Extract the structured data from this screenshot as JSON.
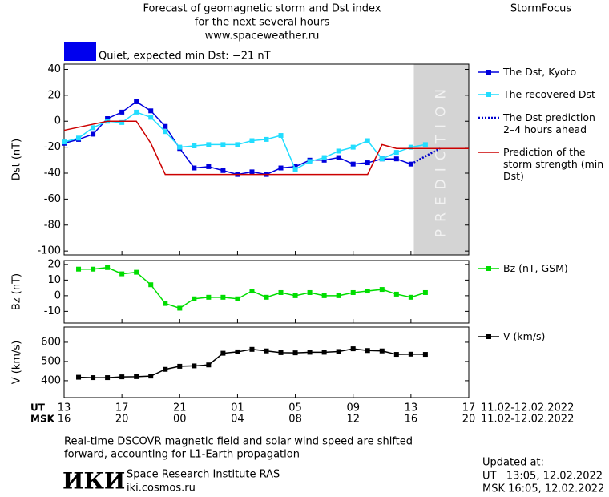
{
  "header": {
    "title_lines": [
      "Forecast of geomagnetic storm and Dst index",
      "for the next several hours",
      "www.spaceweather.ru"
    ],
    "brand": "StormFocus"
  },
  "chart_data": [
    {
      "type": "line",
      "y_label": "Dst (nT)",
      "xlim": [
        0,
        28
      ],
      "ylim": [
        -103,
        44
      ],
      "yticks": [
        40,
        20,
        0,
        -20,
        -40,
        -60,
        -80,
        -100
      ],
      "status": "Quiet, expected min Dst: −21 nT",
      "status_color": "#0000ee",
      "prediction_region": {
        "x": [
          24.2,
          28
        ],
        "label": "PREDICTION",
        "color": "#d4d4d4"
      },
      "series": [
        {
          "name": "The Dst, Kyoto",
          "color": "#0000dd",
          "style": "line-markers",
          "x": [
            0,
            1,
            2,
            3,
            4,
            5,
            6,
            7,
            8,
            9,
            10,
            11,
            12,
            13,
            14,
            15,
            16,
            17,
            18,
            19,
            20,
            21,
            22,
            23,
            24
          ],
          "values": [
            -17,
            -14,
            -10,
            2,
            7,
            15,
            8,
            -4,
            -21,
            -36,
            -35,
            -38,
            -41,
            -39,
            -41,
            -36,
            -35,
            -30,
            -30,
            -28,
            -33,
            -32,
            -29,
            -29,
            -33
          ]
        },
        {
          "name": "The recovered Dst",
          "color": "#22ddff",
          "style": "line-markers",
          "x": [
            0,
            1,
            2,
            3,
            4,
            5,
            6,
            7,
            8,
            9,
            10,
            11,
            12,
            13,
            14,
            15,
            16,
            17,
            18,
            19,
            20,
            21,
            22,
            23,
            24,
            25
          ],
          "values": [
            -16,
            -13,
            -5,
            0,
            -1,
            7,
            3,
            -8,
            -20,
            -19,
            -18,
            -18,
            -18,
            -15,
            -14,
            -11,
            -37,
            -31,
            -28,
            -23,
            -20,
            -15,
            -29,
            -24,
            -20,
            -18
          ]
        },
        {
          "name": "The Dst prediction 2–4 hours ahead",
          "color": "#0000cc",
          "style": "dotted",
          "x": [
            24,
            26
          ],
          "values": [
            -33,
            -21
          ]
        },
        {
          "name": "Prediction of the storm strength (min Dst)",
          "color": "#cc0000",
          "style": "line",
          "x": [
            0,
            3,
            5,
            6,
            7,
            21,
            22,
            23,
            28
          ],
          "values": [
            -7,
            0,
            0,
            -17,
            -41,
            -41,
            -18,
            -21,
            -21
          ]
        }
      ]
    },
    {
      "type": "line",
      "y_label": "Bz (nT)",
      "xlim": [
        0,
        28
      ],
      "ylim": [
        -17.5,
        22.5
      ],
      "yticks": [
        20,
        10,
        0,
        -10
      ],
      "series": [
        {
          "name": "Bz (nT, GSM)",
          "color": "#00dd00",
          "style": "line-markers",
          "x": [
            1,
            2,
            3,
            4,
            5,
            6,
            7,
            8,
            9,
            10,
            11,
            12,
            13,
            14,
            15,
            16,
            17,
            18,
            19,
            20,
            21,
            22,
            23,
            24,
            25
          ],
          "values": [
            17,
            17,
            18,
            14,
            15,
            7,
            -5,
            -8,
            -2,
            -1,
            -1,
            -2,
            3,
            -1,
            2,
            0,
            2,
            0,
            0,
            2,
            3,
            4,
            1,
            -1,
            2
          ]
        }
      ]
    },
    {
      "type": "line",
      "y_label": "V (km/s)",
      "xlim": [
        0,
        28
      ],
      "ylim": [
        312,
        679
      ],
      "yticks": [
        600,
        500,
        400
      ],
      "x_label_ut": "UT",
      "x_label_msk": "MSK",
      "xticks": [
        {
          "value": 0,
          "label": "13"
        },
        {
          "value": 4,
          "label": "17"
        },
        {
          "value": 8,
          "label": "21"
        },
        {
          "value": 12,
          "label": "01"
        },
        {
          "value": 16,
          "label": "05"
        },
        {
          "value": 20,
          "label": "09"
        },
        {
          "value": 24,
          "label": "13"
        },
        {
          "value": 28,
          "label": "17"
        }
      ],
      "xticks_msk": [
        {
          "value": 0,
          "label": "16"
        },
        {
          "value": 4,
          "label": "20"
        },
        {
          "value": 8,
          "label": "00"
        },
        {
          "value": 12,
          "label": "04"
        },
        {
          "value": 16,
          "label": "08"
        },
        {
          "value": 20,
          "label": "12"
        },
        {
          "value": 24,
          "label": "16"
        },
        {
          "value": 28,
          "label": "20"
        }
      ],
      "date_range_ut": "11.02-12.02.2022",
      "date_range_msk": "11.02-12.02.2022",
      "series": [
        {
          "name": "V (km/s)",
          "color": "#000000",
          "style": "line-markers",
          "x": [
            1,
            2,
            3,
            4,
            5,
            6,
            7,
            8,
            9,
            10,
            11,
            12,
            13,
            14,
            15,
            16,
            17,
            18,
            19,
            20,
            21,
            22,
            23,
            24,
            25
          ],
          "values": [
            418,
            416,
            416,
            420,
            421,
            424,
            459,
            475,
            477,
            482,
            543,
            550,
            563,
            555,
            546,
            545,
            548,
            548,
            552,
            566,
            557,
            555,
            537,
            538,
            537
          ]
        }
      ]
    }
  ],
  "footer": {
    "note_lines": [
      "Real-time DSCOVR magnetic field and solar wind speed are shifted",
      "forward, accounting for L1-Earth propagation"
    ],
    "logo": "ИКИ",
    "institute": "Space Research Institute RAS",
    "site": "iki.cosmos.ru",
    "updated_label": "Updated at:",
    "updated_ut": "UT   13:05, 12.02.2022",
    "updated_msk": "MSK 16:05, 12.02.2022"
  }
}
